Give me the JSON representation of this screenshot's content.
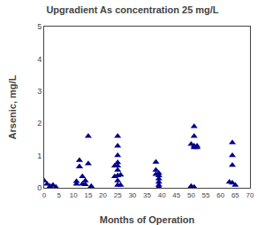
{
  "chart_data": {
    "type": "scatter",
    "title": "Upgradient As concentration 25 mg/L",
    "xlabel": "Months of Operation",
    "ylabel": "Arsenic, mg/L",
    "x": [
      0,
      1,
      2,
      3,
      4,
      11,
      11,
      12,
      12,
      12,
      13,
      13,
      14,
      14,
      15,
      15,
      16,
      16,
      24,
      24,
      25,
      25,
      25,
      25,
      25,
      25,
      25,
      25,
      25,
      26,
      26,
      38,
      38,
      38,
      39,
      39,
      39,
      39,
      39,
      39,
      50,
      50,
      51,
      51,
      51,
      51,
      51,
      52,
      52,
      63,
      64,
      64,
      64,
      64,
      65
    ],
    "values": [
      0.22,
      0.12,
      0.05,
      0.08,
      0.02,
      0.12,
      0.2,
      0.65,
      0.85,
      0.65,
      0.35,
      0.12,
      0.22,
      0.1,
      0.75,
      1.6,
      0.05,
      0.02,
      0.68,
      0.35,
      1.6,
      1.3,
      1.0,
      0.78,
      0.68,
      0.55,
      0.38,
      0.22,
      0.08,
      0.4,
      0.08,
      0.8,
      0.55,
      0.42,
      0.45,
      0.38,
      0.28,
      0.18,
      0.08,
      0.02,
      0.05,
      1.35,
      1.9,
      1.6,
      1.3,
      1.25,
      0.02,
      1.3,
      1.25,
      0.18,
      1.4,
      1.0,
      0.7,
      0.15,
      0.08
    ],
    "color": "#00008B",
    "marker": "triangle-up",
    "xlim": [
      0,
      70
    ],
    "ylim": [
      0,
      5
    ],
    "xticks": [
      0,
      5,
      10,
      15,
      20,
      25,
      30,
      35,
      40,
      45,
      50,
      55,
      60,
      65,
      70
    ],
    "yticks": [
      0,
      1,
      2,
      3,
      4,
      5
    ],
    "grid": false
  }
}
